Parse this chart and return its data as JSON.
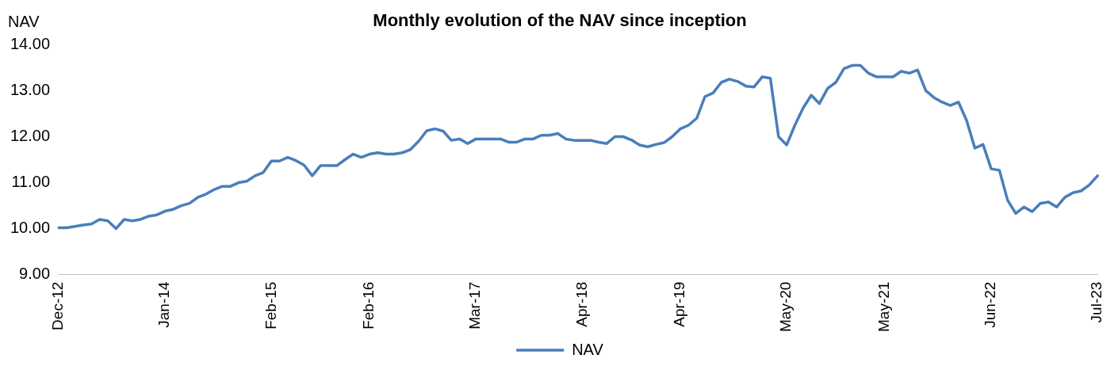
{
  "chart_data": {
    "type": "line",
    "title": "Monthly evolution of the NAV since inception",
    "ylabel": "NAV",
    "categories": [
      "Dec-12",
      null,
      null,
      null,
      null,
      null,
      null,
      null,
      null,
      null,
      null,
      null,
      null,
      "Jan-14",
      null,
      null,
      null,
      null,
      null,
      null,
      null,
      null,
      null,
      null,
      null,
      null,
      "Feb-15",
      null,
      null,
      null,
      null,
      null,
      null,
      null,
      null,
      null,
      null,
      null,
      "Feb-16",
      null,
      null,
      null,
      null,
      null,
      null,
      null,
      null,
      null,
      null,
      null,
      null,
      "Mar-17",
      null,
      null,
      null,
      null,
      null,
      null,
      null,
      null,
      null,
      null,
      null,
      null,
      "Apr-18",
      null,
      null,
      null,
      null,
      null,
      null,
      null,
      null,
      null,
      null,
      null,
      "Apr-19",
      null,
      null,
      null,
      null,
      null,
      null,
      null,
      null,
      null,
      null,
      null,
      null,
      "May-20",
      null,
      null,
      null,
      null,
      null,
      null,
      null,
      null,
      null,
      null,
      null,
      "May-21",
      null,
      null,
      null,
      null,
      null,
      null,
      null,
      null,
      null,
      null,
      null,
      null,
      "Jun-22",
      null,
      null,
      null,
      null,
      null,
      null,
      null,
      null,
      null,
      null,
      null,
      null,
      "Jul-23"
    ],
    "series": [
      {
        "name": "NAV",
        "color": "#4a7ebb",
        "values": [
          10.02,
          10.02,
          10.05,
          10.08,
          10.1,
          10.2,
          10.17,
          10.0,
          10.2,
          10.17,
          10.2,
          10.27,
          10.3,
          10.38,
          10.42,
          10.5,
          10.55,
          10.68,
          10.75,
          10.85,
          10.92,
          10.92,
          11.0,
          11.03,
          11.15,
          11.22,
          11.47,
          11.47,
          11.55,
          11.48,
          11.38,
          11.15,
          11.37,
          11.37,
          11.37,
          11.5,
          11.62,
          11.55,
          11.62,
          11.65,
          11.62,
          11.62,
          11.65,
          11.72,
          11.9,
          12.13,
          12.17,
          12.12,
          11.92,
          11.95,
          11.85,
          11.95,
          11.95,
          11.95,
          11.95,
          11.88,
          11.88,
          11.95,
          11.95,
          12.03,
          12.03,
          12.07,
          11.95,
          11.92,
          11.92,
          11.92,
          11.88,
          11.85,
          12.0,
          12.0,
          11.93,
          11.82,
          11.78,
          11.83,
          11.87,
          12.0,
          12.17,
          12.25,
          12.4,
          12.87,
          12.95,
          13.18,
          13.25,
          13.2,
          13.1,
          13.08,
          13.3,
          13.27,
          12.0,
          11.82,
          12.25,
          12.62,
          12.9,
          12.72,
          13.05,
          13.18,
          13.48,
          13.55,
          13.55,
          13.38,
          13.3,
          13.3,
          13.3,
          13.42,
          13.38,
          13.45,
          13.0,
          12.85,
          12.75,
          12.68,
          12.75,
          12.35,
          11.75,
          11.83,
          11.3,
          11.27,
          10.62,
          10.33,
          10.47,
          10.37,
          10.55,
          10.58,
          10.47,
          10.68,
          10.78,
          10.82,
          10.95,
          11.15
        ]
      }
    ],
    "ylim": [
      9,
      14
    ],
    "yticks": [
      {
        "value": 9,
        "label": "9.00"
      },
      {
        "value": 10,
        "label": "10.00"
      },
      {
        "value": 11,
        "label": "11.00"
      },
      {
        "value": 12,
        "label": "12.00"
      },
      {
        "value": 13,
        "label": "13.00"
      },
      {
        "value": 14,
        "label": "14.00"
      }
    ],
    "grid": false,
    "legend": "bottom",
    "marker": "none",
    "line_style": "solid"
  }
}
